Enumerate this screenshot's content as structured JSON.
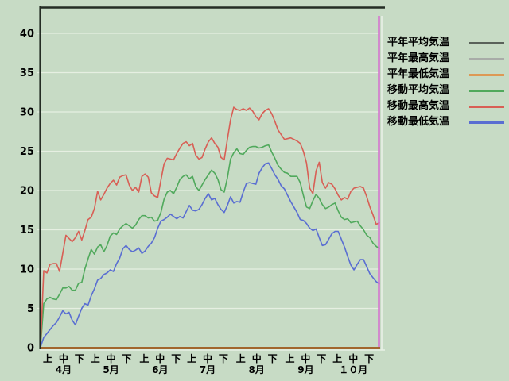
{
  "colors": {
    "background": "#c7dbc5",
    "grid": "#e6efe2",
    "frame": "#242c24",
    "x_axis": "#a2662e",
    "cursor": "#d66fd0",
    "shadow": "#e9f1e6",
    "text": "#000000"
  },
  "chart_data": {
    "type": "line",
    "title": "",
    "xlabel": "",
    "ylabel": "",
    "grid": true,
    "legend_position": "right",
    "y_axis": {
      "min": 0,
      "max": 40,
      "tick_step": 5,
      "ticks": [
        0,
        5,
        10,
        15,
        20,
        25,
        30,
        35,
        40
      ]
    },
    "x_axis": {
      "total_days": 214,
      "period_labels": [
        "上",
        "中",
        "下"
      ],
      "period_days": [
        4.5,
        14.5,
        24.5
      ],
      "months": [
        {
          "label": "4月",
          "start_day": 0
        },
        {
          "label": "5月",
          "start_day": 30
        },
        {
          "label": "6月",
          "start_day": 61
        },
        {
          "label": "7月",
          "start_day": 91
        },
        {
          "label": "8月",
          "start_day": 122
        },
        {
          "label": "9月",
          "start_day": 153
        },
        {
          "label": "１０月",
          "start_day": 183
        }
      ]
    },
    "series": [
      {
        "id": "heinen-avg",
        "name": "平年平均気温",
        "color": "#5a625a",
        "width": 1.2,
        "start_day": 0,
        "step_days": 214,
        "values": [
          0,
          0
        ]
      },
      {
        "id": "heinen-max",
        "name": "平年最高気温",
        "color": "#a8aca8",
        "width": 1.2,
        "start_day": 0,
        "step_days": 214,
        "values": [
          0,
          0
        ]
      },
      {
        "id": "heinen-min",
        "name": "平年最低気温",
        "color": "#dd9955",
        "width": 1.2,
        "start_day": 0,
        "step_days": 214,
        "values": [
          0,
          0
        ]
      },
      {
        "id": "moving-avg",
        "name": "移動平均気温",
        "color": "#50a95c",
        "width": 1.6,
        "start_day": 0,
        "step_days": 2,
        "values": [
          0.2,
          5.6,
          6.2,
          6.4,
          6.2,
          6.1,
          6.8,
          7.6,
          7.6,
          7.8,
          7.3,
          7.3,
          8.2,
          8.3,
          10.0,
          11.3,
          12.5,
          11.9,
          12.8,
          13.1,
          12.2,
          13.0,
          14.2,
          14.6,
          14.4,
          15.1,
          15.5,
          15.8,
          15.5,
          15.2,
          15.6,
          16.3,
          16.8,
          16.8,
          16.5,
          16.6,
          16.1,
          16.2,
          17.2,
          18.9,
          19.8,
          20.0,
          19.6,
          20.4,
          21.4,
          21.8,
          22.0,
          21.5,
          21.8,
          20.5,
          20.0,
          20.7,
          21.4,
          22.0,
          22.6,
          22.2,
          21.4,
          20.1,
          19.8,
          21.6,
          24.0,
          24.8,
          25.3,
          24.7,
          24.6,
          25.1,
          25.5,
          25.6,
          25.6,
          25.4,
          25.5,
          25.7,
          25.8,
          24.9,
          24.1,
          23.2,
          22.7,
          22.3,
          22.2,
          21.8,
          21.8,
          21.8,
          21.0,
          19.4,
          17.9,
          17.7,
          18.7,
          19.5,
          19.0,
          18.2,
          17.7,
          17.9,
          18.2,
          18.4,
          17.4,
          16.6,
          16.3,
          16.4,
          15.9,
          16.0,
          16.1,
          15.5,
          15.0,
          14.3,
          14.0,
          13.3,
          12.9,
          12.6
        ]
      },
      {
        "id": "moving-max",
        "name": "移動最高気温",
        "color": "#d85f55",
        "width": 1.6,
        "start_day": 0,
        "step_days": 2,
        "values": [
          0.3,
          9.8,
          9.5,
          10.6,
          10.7,
          10.7,
          9.7,
          12.0,
          14.3,
          13.9,
          13.5,
          14.0,
          14.8,
          13.7,
          14.9,
          16.3,
          16.6,
          17.7,
          19.9,
          18.8,
          19.5,
          20.3,
          20.9,
          21.3,
          20.7,
          21.7,
          21.9,
          22.0,
          20.7,
          20.0,
          20.4,
          19.8,
          21.8,
          22.1,
          21.7,
          19.7,
          19.3,
          19.1,
          21.3,
          23.4,
          24.1,
          24.0,
          23.9,
          24.7,
          25.4,
          26.0,
          26.2,
          25.7,
          26.0,
          24.5,
          24.0,
          24.2,
          25.3,
          26.2,
          26.7,
          26.0,
          25.5,
          24.2,
          23.9,
          26.5,
          29.0,
          30.6,
          30.3,
          30.2,
          30.4,
          30.2,
          30.5,
          30.1,
          29.4,
          29.0,
          29.8,
          30.2,
          30.4,
          29.8,
          28.8,
          27.7,
          27.1,
          26.5,
          26.6,
          26.7,
          26.5,
          26.3,
          26.0,
          25.0,
          23.5,
          20.3,
          19.6,
          22.5,
          23.6,
          21.0,
          20.3,
          21.0,
          20.8,
          20.2,
          19.4,
          18.8,
          19.1,
          18.9,
          19.9,
          20.3,
          20.4,
          20.5,
          20.3,
          19.2,
          17.9,
          16.9,
          15.7,
          15.9
        ]
      },
      {
        "id": "moving-min",
        "name": "移動最低気温",
        "color": "#5a6ed2",
        "width": 1.6,
        "start_day": 0,
        "step_days": 2,
        "values": [
          0.1,
          1.3,
          1.8,
          2.3,
          2.8,
          3.2,
          3.9,
          4.7,
          4.3,
          4.5,
          3.5,
          2.9,
          4.0,
          5.0,
          5.6,
          5.4,
          6.6,
          7.5,
          8.6,
          8.8,
          9.3,
          9.5,
          9.9,
          9.7,
          10.7,
          11.4,
          12.6,
          13.0,
          12.5,
          12.2,
          12.4,
          12.7,
          12.0,
          12.3,
          12.9,
          13.3,
          14.0,
          15.2,
          16.1,
          16.3,
          16.6,
          17.0,
          16.7,
          16.4,
          16.7,
          16.5,
          17.3,
          18.1,
          17.5,
          17.4,
          17.6,
          18.2,
          19.0,
          19.6,
          18.8,
          19.0,
          18.2,
          17.6,
          17.2,
          18.1,
          19.2,
          18.4,
          18.6,
          18.5,
          19.8,
          20.9,
          21.0,
          20.9,
          20.8,
          22.2,
          22.9,
          23.4,
          23.5,
          22.8,
          22.0,
          21.4,
          20.6,
          20.2,
          19.4,
          18.6,
          17.9,
          17.2,
          16.3,
          16.2,
          15.8,
          15.2,
          14.9,
          15.1,
          14.0,
          13.0,
          13.1,
          13.8,
          14.5,
          14.8,
          14.8,
          13.8,
          12.8,
          11.6,
          10.5,
          9.9,
          10.6,
          11.2,
          11.2,
          10.3,
          9.4,
          8.9,
          8.4,
          8.1
        ]
      }
    ]
  },
  "legend": {
    "items": [
      {
        "label": "平年平均気温"
      },
      {
        "label": "平年最高気温"
      },
      {
        "label": "平年最低気温"
      },
      {
        "label": "移動平均気温"
      },
      {
        "label": "移動最高気温"
      },
      {
        "label": "移動最低気温"
      }
    ]
  }
}
